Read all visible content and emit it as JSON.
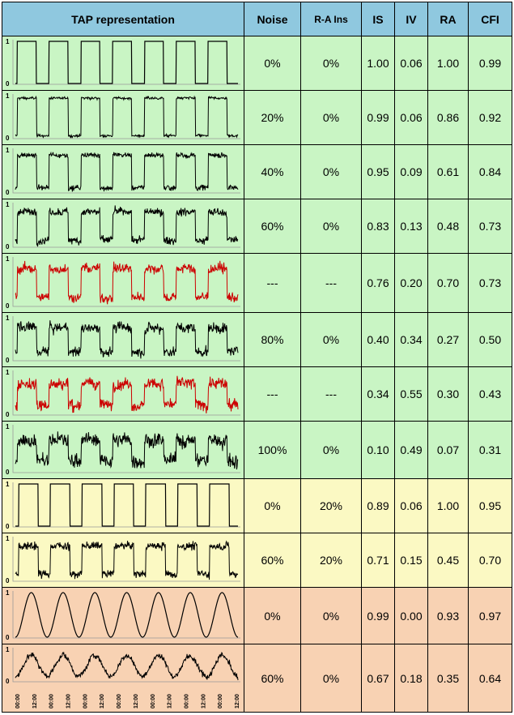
{
  "columns": [
    "TAP representation",
    "Noise",
    "R-A Ins",
    "IS",
    "IV",
    "RA",
    "CFI"
  ],
  "chart_data": {
    "type": "table",
    "y_tick_labels": [
      "1",
      "0"
    ],
    "x_tick_labels": [
      "00:00",
      "12:00",
      "00:00",
      "12:00",
      "00:00",
      "12:00",
      "00:00",
      "12:00",
      "00:00",
      "12:00",
      "00:00",
      "12:00",
      "00:00",
      "12:00"
    ],
    "rows": [
      {
        "group": "green",
        "shape": "square",
        "noise_level": 0.0,
        "line_color": "#000000",
        "noise": "0%",
        "ra_ins": "0%",
        "IS": "1.00",
        "IV": "0.06",
        "RA": "1.00",
        "CFI": "0.99"
      },
      {
        "group": "green",
        "shape": "square",
        "noise_level": 0.2,
        "line_color": "#000000",
        "noise": "20%",
        "ra_ins": "0%",
        "IS": "0.99",
        "IV": "0.06",
        "RA": "0.86",
        "CFI": "0.92"
      },
      {
        "group": "green",
        "shape": "square",
        "noise_level": 0.4,
        "line_color": "#000000",
        "noise": "40%",
        "ra_ins": "0%",
        "IS": "0.95",
        "IV": "0.09",
        "RA": "0.61",
        "CFI": "0.84"
      },
      {
        "group": "green",
        "shape": "square",
        "noise_level": 0.6,
        "line_color": "#000000",
        "noise": "60%",
        "ra_ins": "0%",
        "IS": "0.83",
        "IV": "0.13",
        "RA": "0.48",
        "CFI": "0.73"
      },
      {
        "group": "green",
        "shape": "square",
        "noise_level": 0.7,
        "line_color": "#cc0000",
        "noise": "---",
        "ra_ins": "---",
        "IS": "0.76",
        "IV": "0.20",
        "RA": "0.70",
        "CFI": "0.73"
      },
      {
        "group": "green",
        "shape": "square",
        "noise_level": 0.8,
        "line_color": "#000000",
        "noise": "80%",
        "ra_ins": "0%",
        "IS": "0.40",
        "IV": "0.34",
        "RA": "0.27",
        "CFI": "0.50"
      },
      {
        "group": "green",
        "shape": "square",
        "noise_level": 0.9,
        "line_color": "#cc0000",
        "noise": "---",
        "ra_ins": "---",
        "IS": "0.34",
        "IV": "0.55",
        "RA": "0.30",
        "CFI": "0.43"
      },
      {
        "group": "green",
        "shape": "square",
        "noise_level": 1.0,
        "line_color": "#000000",
        "noise": "100%",
        "ra_ins": "0%",
        "IS": "0.10",
        "IV": "0.49",
        "RA": "0.07",
        "CFI": "0.31"
      },
      {
        "group": "yellow",
        "shape": "square_shifted",
        "noise_level": 0.0,
        "line_color": "#000000",
        "noise": "0%",
        "ra_ins": "20%",
        "IS": "0.89",
        "IV": "0.06",
        "RA": "1.00",
        "CFI": "0.95"
      },
      {
        "group": "yellow",
        "shape": "square_shifted",
        "noise_level": 0.6,
        "line_color": "#000000",
        "noise": "60%",
        "ra_ins": "20%",
        "IS": "0.71",
        "IV": "0.15",
        "RA": "0.45",
        "CFI": "0.70"
      },
      {
        "group": "orange",
        "shape": "sine",
        "noise_level": 0.0,
        "line_color": "#000000",
        "noise": "0%",
        "ra_ins": "0%",
        "IS": "0.99",
        "IV": "0.00",
        "RA": "0.93",
        "CFI": "0.97"
      },
      {
        "group": "orange",
        "shape": "sine",
        "noise_level": 0.6,
        "line_color": "#000000",
        "noise": "60%",
        "ra_ins": "0%",
        "IS": "0.67",
        "IV": "0.18",
        "RA": "0.35",
        "CFI": "0.64"
      }
    ]
  }
}
